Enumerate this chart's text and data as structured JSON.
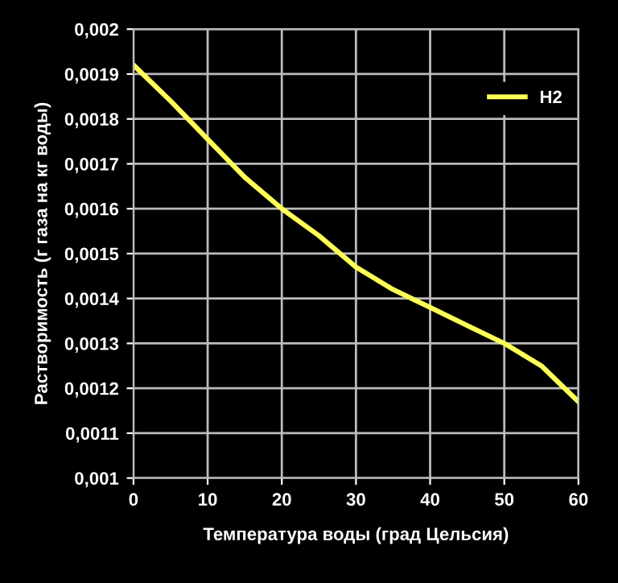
{
  "chart_data": {
    "type": "line",
    "xlabel": "Температура воды (град Цельсия)",
    "ylabel": "Растворимость (г газа на кг воды)",
    "x": [
      0,
      5,
      10,
      15,
      20,
      25,
      30,
      35,
      40,
      45,
      50,
      55,
      60
    ],
    "series": [
      {
        "name": "H2",
        "color": "#ffff55",
        "values": [
          0.00192,
          0.00184,
          0.001755,
          0.00167,
          0.0016,
          0.00154,
          0.00147,
          0.00142,
          0.00138,
          0.00134,
          0.0013,
          0.00125,
          0.00117
        ]
      }
    ],
    "xlim": [
      0,
      60
    ],
    "xticks": [
      0,
      10,
      20,
      30,
      40,
      50,
      60
    ],
    "ylim": [
      0.001,
      0.002
    ],
    "yticks": [
      {
        "value": 0.001,
        "label": "0,001"
      },
      {
        "value": 0.0011,
        "label": "0,0011"
      },
      {
        "value": 0.0012,
        "label": "0,0012"
      },
      {
        "value": 0.0013,
        "label": "0,0013"
      },
      {
        "value": 0.0014,
        "label": "0,0014"
      },
      {
        "value": 0.0015,
        "label": "0,0015"
      },
      {
        "value": 0.0016,
        "label": "0,0016"
      },
      {
        "value": 0.0017,
        "label": "0,0017"
      },
      {
        "value": 0.0018,
        "label": "0,0018"
      },
      {
        "value": 0.0019,
        "label": "0,0019"
      },
      {
        "value": 0.002,
        "label": "0,002"
      }
    ],
    "grid": true,
    "legend": "top right",
    "marker": "none",
    "line_style": "solid"
  }
}
